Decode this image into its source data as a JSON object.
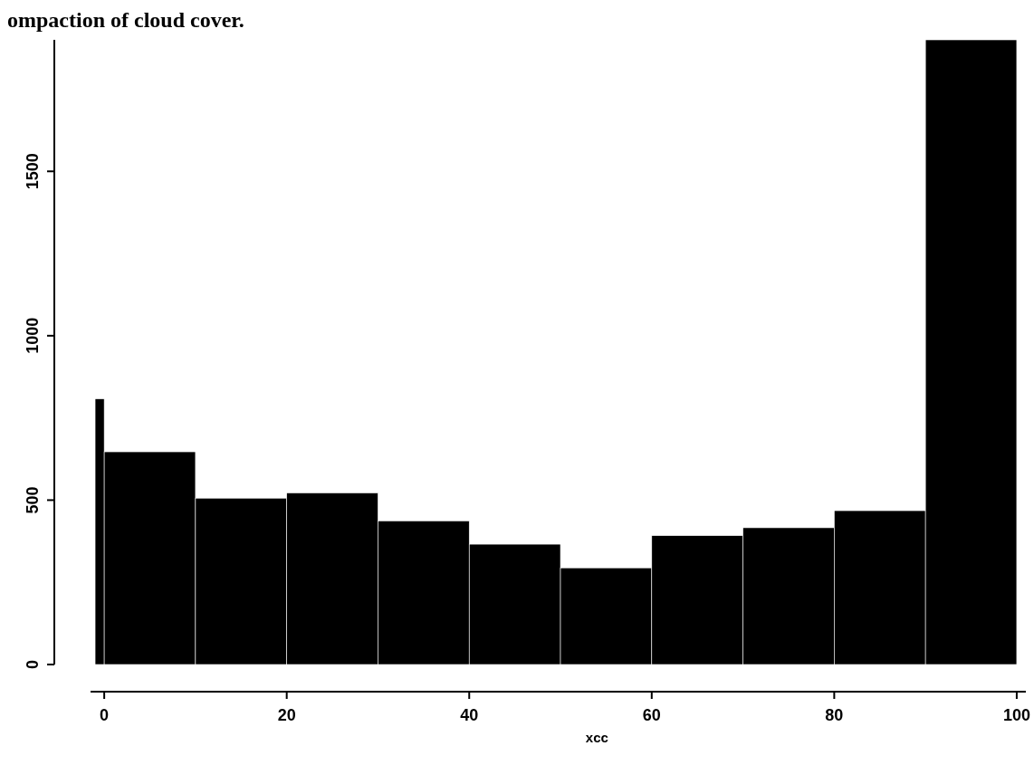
{
  "chart_data": {
    "type": "histogram",
    "title": "ompaction of cloud cover.",
    "xlabel": "xcc",
    "bins": [
      -1,
      0,
      10,
      20,
      30,
      40,
      50,
      60,
      70,
      80,
      90,
      100
    ],
    "values": [
      808,
      647,
      506,
      522,
      437,
      366,
      294,
      392,
      416,
      468,
      1900
    ],
    "color": "#000000",
    "xlim": [
      -1.5,
      101
    ],
    "xticks": [
      0,
      20,
      40,
      60,
      80,
      100
    ],
    "ylim": [
      0,
      1900
    ],
    "yticks": [
      0,
      500,
      1000,
      1500
    ],
    "grid": false
  }
}
